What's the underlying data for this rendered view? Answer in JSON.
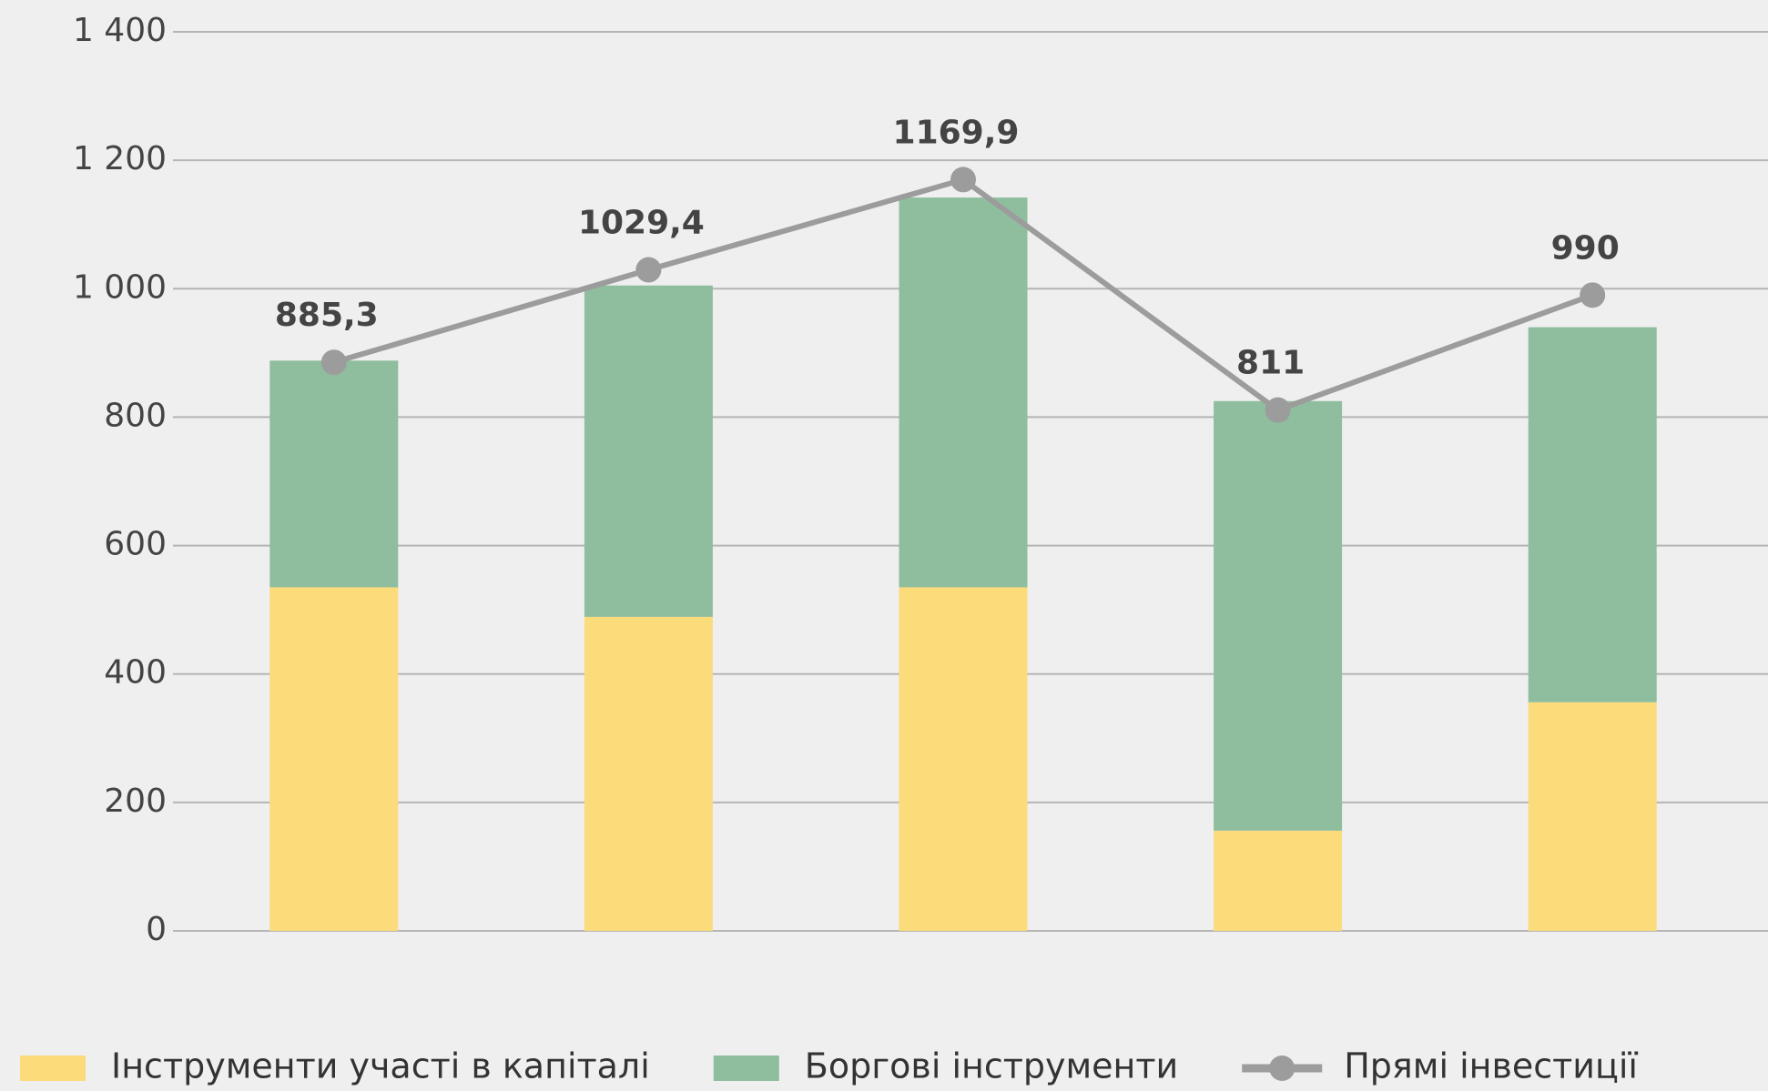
{
  "chart_data": {
    "type": "bar_line",
    "categories": [
      null,
      null,
      null,
      null,
      null
    ],
    "series": [
      {
        "name": "Інструменти участі в капіталі",
        "color": "#fcdb7a",
        "type": "bar",
        "values": [
          535,
          489,
          535,
          156,
          356
        ]
      },
      {
        "name": "Боргові інструменти",
        "color": "#8fbe9e",
        "type": "bar",
        "values": [
          353,
          516,
          607,
          669,
          584
        ]
      },
      {
        "name": "Прямі інвестиції",
        "color": "#9c9c9c",
        "type": "line",
        "values": [
          885.3,
          1029.4,
          1169.9,
          811,
          990
        ],
        "value_labels": [
          "885,3",
          "1029,4",
          "1169,9",
          "811",
          "990"
        ]
      }
    ],
    "ylim": [
      0,
      1400
    ],
    "yticks": [
      0,
      200,
      400,
      600,
      800,
      {
        "value": 1000,
        "label": "1 000"
      },
      {
        "value": 1200,
        "label": "1 200"
      },
      {
        "value": 1400,
        "label": "1 400"
      }
    ],
    "grid": true,
    "legend": "bottom"
  }
}
